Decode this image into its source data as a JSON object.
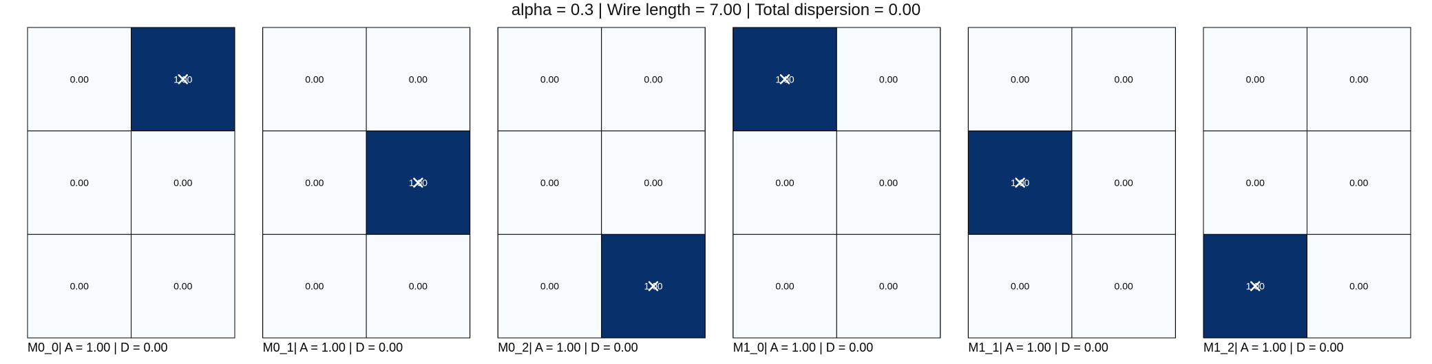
{
  "title": "alpha = 0.3 | Wire length = 7.00 | Total dispersion = 0.00",
  "colors": {
    "low": "#f7fbff",
    "high": "#08306b",
    "border": "#000000",
    "text_low": "#000000",
    "text_high": "#ffffff",
    "marker": "#ffffff"
  },
  "chart_data": [
    {
      "type": "heatmap",
      "label": "M0_0| A = 1.00 | D = 0.00",
      "values": [
        [
          "0.00",
          "1.00"
        ],
        [
          "0.00",
          "0.00"
        ],
        [
          "0.00",
          "0.00"
        ]
      ],
      "marker": [
        0,
        1
      ]
    },
    {
      "type": "heatmap",
      "label": "M0_1| A = 1.00 | D = 0.00",
      "values": [
        [
          "0.00",
          "0.00"
        ],
        [
          "0.00",
          "1.00"
        ],
        [
          "0.00",
          "0.00"
        ]
      ],
      "marker": [
        1,
        1
      ]
    },
    {
      "type": "heatmap",
      "label": "M0_2| A = 1.00 | D = 0.00",
      "values": [
        [
          "0.00",
          "0.00"
        ],
        [
          "0.00",
          "0.00"
        ],
        [
          "0.00",
          "1.00"
        ]
      ],
      "marker": [
        2,
        1
      ]
    },
    {
      "type": "heatmap",
      "label": "M1_0| A = 1.00 | D = 0.00",
      "values": [
        [
          "1.00",
          "0.00"
        ],
        [
          "0.00",
          "0.00"
        ],
        [
          "0.00",
          "0.00"
        ]
      ],
      "marker": [
        0,
        0
      ]
    },
    {
      "type": "heatmap",
      "label": "M1_1| A = 1.00 | D = 0.00",
      "values": [
        [
          "0.00",
          "0.00"
        ],
        [
          "1.00",
          "0.00"
        ],
        [
          "0.00",
          "0.00"
        ]
      ],
      "marker": [
        1,
        0
      ]
    },
    {
      "type": "heatmap",
      "label": "M1_2| A = 1.00 | D = 0.00",
      "values": [
        [
          "0.00",
          "0.00"
        ],
        [
          "0.00",
          "0.00"
        ],
        [
          "1.00",
          "0.00"
        ]
      ],
      "marker": [
        2,
        0
      ]
    }
  ]
}
